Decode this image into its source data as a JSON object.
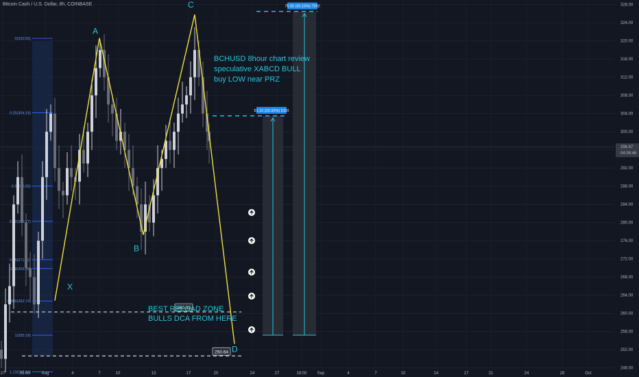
{
  "header": {
    "symbol_title": "Bitcoin Cash / U.S. Dollar, 8h, COINBASE"
  },
  "colors": {
    "background": "#131722",
    "candle_up": "#cfd2d9",
    "candle_down": "#6a6d78",
    "pattern": "#f0e13f",
    "cyan": "#26c6da",
    "fib": "#2962ff",
    "tag_blue": "#1e88e5"
  },
  "chart_data": {
    "type": "candlestick",
    "ylim": [
      246,
      329
    ],
    "yticks": [
      248,
      252,
      256,
      260,
      264,
      268,
      272,
      276,
      280,
      284,
      288,
      292,
      296,
      300,
      304,
      308,
      312,
      316,
      320,
      324,
      328
    ],
    "xticks": [
      "27",
      "19:00",
      "Aug",
      "4",
      "7",
      "10",
      "13",
      "17",
      "20",
      "24",
      "27",
      "19:00",
      "Sep",
      "4",
      "7",
      "10",
      "14",
      "17",
      "21",
      "24",
      "28",
      "Oct"
    ],
    "last_price": {
      "value": 296.67,
      "label": "296.67",
      "countdown": "04:06:46"
    },
    "pattern_points": [
      {
        "label": "X",
        "value": 262.8
      },
      {
        "label": "A",
        "value": 320.6
      },
      {
        "label": "B",
        "value": 277.3
      },
      {
        "label": "C",
        "value": 325.8
      },
      {
        "label": "D",
        "value": 253.3
      }
    ],
    "fib_levels": [
      {
        "label": "0(320.55)",
        "value": 320.55
      },
      {
        "label": "0.25(304.19)",
        "value": 304.19
      },
      {
        "label": "0.5(288.05)",
        "value": 288.05
      },
      {
        "label": "0.62(280.27)",
        "value": 280.27
      },
      {
        "label": "0.75(271.82)",
        "value": 271.82
      },
      {
        "label": "0.79(269.88)",
        "value": 269.88
      },
      {
        "label": "0.886(262.74)",
        "value": 262.74
      },
      {
        "label": "1(255.18)",
        "value": 255.18
      },
      {
        "label": "1.13(247.14)",
        "value": 247.14
      }
    ],
    "levels": [
      {
        "value": 260.33,
        "label": "260.33"
      },
      {
        "value": 250.64,
        "label": "250.64"
      }
    ],
    "targets": [
      {
        "value": 303.5,
        "label": "51.10 (20.32%) 5110"
      },
      {
        "value": 326.5,
        "label": "75.92 (30.15%) 7592"
      }
    ],
    "annotations": {
      "review": [
        "BCHUSD 8hour chart review",
        "speculative XABCD BULL",
        "buy LOW near PRZ"
      ],
      "zone": [
        "BEST RELOAD ZONE",
        "BULLS DCA FROM HERE"
      ]
    }
  }
}
